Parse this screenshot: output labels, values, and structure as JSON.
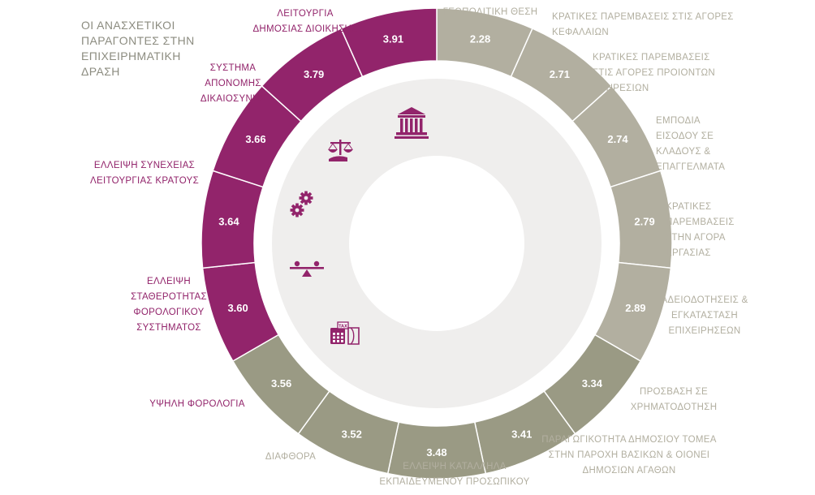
{
  "chart_data": {
    "type": "pie",
    "style": "donut",
    "title": [
      "ΟΙ ΑΝΑΣΧΕΤΙΚΟΙ",
      "ΠΑΡΑΓΟΝΤΕΣ ΣΤΗΝ",
      "ΕΠΙΧΕΙΡΗΜΑΤΙΚΗ",
      "ΔΡΑΣΗ"
    ],
    "colors": {
      "purple": "#92246b",
      "light_gray": "#b2afa0",
      "dark_gray": "#9a9a84",
      "inner_fill": "#efeeed",
      "title": "#8c8c80"
    },
    "slices": [
      {
        "label": [
          "ΓΕΩΠΟΛΙΤΙΚΗ ΘΕΣΗ"
        ],
        "value": "2.28",
        "group": "light"
      },
      {
        "label": [
          "ΚΡΑΤΙΚΕΣ ΠΑΡΕΜΒΑΣΕΙΣ ΣΤΙΣ ΑΓΟΡΕΣ",
          "ΚΕΦΑΛΑΙΩΝ"
        ],
        "value": "2.71",
        "group": "light"
      },
      {
        "label": [
          "ΚΡΑΤΙΚΕΣ ΠΑΡΕΜΒΑΣΕΙΣ",
          "ΣΤΙΣ ΑΓΟΡΕΣ ΠΡΟΙΟΝΤΩΝ",
          "ΥΠΗΡΕΣΙΩΝ"
        ],
        "value": "2.74",
        "group": "light"
      },
      {
        "label": [
          "ΕΜΠΟΔΙΑ",
          "ΕΙΣΟΔΟΥ ΣΕ",
          "ΚΛΑΔΟΥΣ &",
          "ΕΠΑΓΓΕΛΜΑΤΑ"
        ],
        "value": "2.79",
        "group": "light"
      },
      {
        "label": [
          "ΚΡΑΤΙΚΕΣ",
          "ΠΑΡΕΜΒΑΣΕΙΣ",
          "ΣΤΗΝ ΑΓΟΡΑ",
          "ΕΡΓΑΣΙΑΣ"
        ],
        "value": "2.89",
        "group": "light"
      },
      {
        "label": [
          "ΑΔΕΙΟΔΟΤΗΣΕΙΣ &",
          "ΕΓΚΑΤΑΣΤΑΣΗ",
          "ΕΠΙΧΕΙΡΗΣΕΩΝ"
        ],
        "value": "3.34",
        "group": "dark"
      },
      {
        "label": [
          "ΠΡΟΣΒΑΣΗ ΣΕ",
          "ΧΡΗΜΑΤΟΔΟΤΗΣΗ"
        ],
        "value": "3.41",
        "group": "dark"
      },
      {
        "label": [
          "ΠΑΡΑΓΩΓΙΚΟΤΗΤΑ ΔΗΜΟΣΙΟΥ ΤΟΜΕΑ",
          "ΣΤΗΝ ΠΑΡΟΧΗ ΒΑΣΙΚΩΝ & ΟΙΟΝΕΙ",
          "ΔΗΜΟΣΙΩΝ ΑΓΑΘΩΝ"
        ],
        "value": "3.48",
        "group": "dark"
      },
      {
        "label": [
          "ΕΛΛΕΙΨΗ ΚΑΤΑΛΛΗΛΑ",
          "ΕΚΠΑΙΔΕΥΜΕΝΟΥ ΠΡΟΣΩΠΙΚΟΥ"
        ],
        "value": "3.52",
        "group": "dark"
      },
      {
        "label": [
          "ΔΙΑΦΘΟΡΑ"
        ],
        "value": "3.56",
        "group": "dark"
      },
      {
        "label": [
          "ΥΨΗΛΗ ΦΟΡΟΛΟΓΙΑ"
        ],
        "value": "3.60",
        "group": "purple"
      },
      {
        "label": [
          "ΕΛΛΕΙΨΗ",
          "ΣΤΑΘΕΡΟΤΗΤΑΣ",
          "ΦΟΡΟΛΟΓΙΚΟΥ",
          "ΣΥΣΤΗΜΑΤΟΣ"
        ],
        "value": "3.64",
        "group": "purple"
      },
      {
        "label": [
          "ΕΛΛΕΙΨΗ ΣΥΝΕΧΕΙΑΣ",
          "ΛΕΙΤΟΥΡΓΙΑΣ ΚΡΑΤΟΥΣ"
        ],
        "value": "3.66",
        "group": "purple"
      },
      {
        "label": [
          "ΣΥΣΤΗΜΑ",
          "ΑΠΟΝΟΜΗΣ",
          "ΔΙΚΑΙΟΣΥΝΗΣ"
        ],
        "value": "3.79",
        "group": "purple"
      },
      {
        "label": [
          "ΛΕΙΤΟΥΡΓΙΑ",
          "ΔΗΜΟΣΙΑΣ ΔΙΟΙΚΗΣΗΣ"
        ],
        "value": "3.91",
        "group": "purple"
      }
    ],
    "icons": [
      "public-building-icon",
      "scales-of-justice-icon",
      "gears-icon",
      "balance-seesaw-icon",
      "tax-calculator-icon"
    ]
  }
}
